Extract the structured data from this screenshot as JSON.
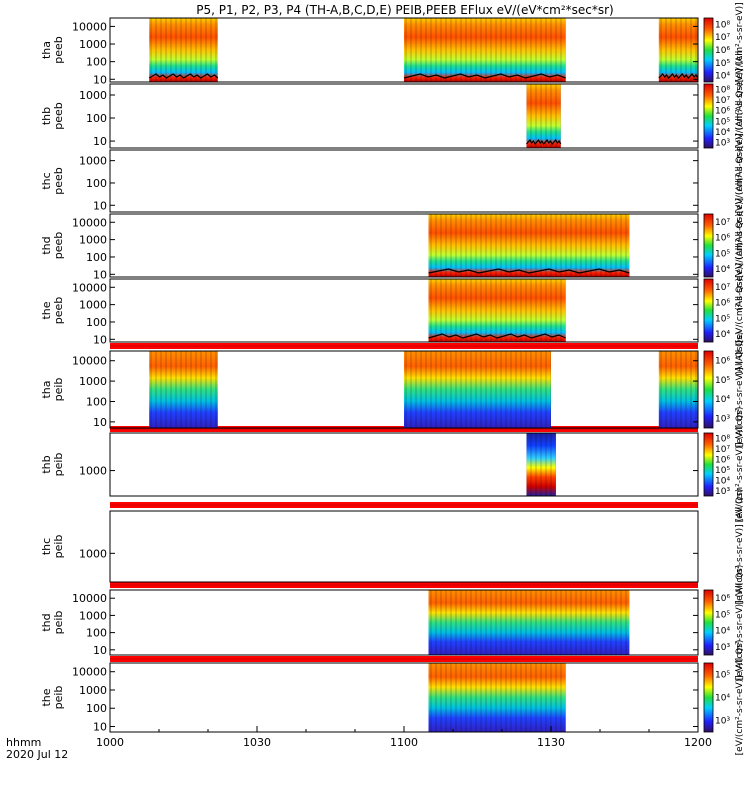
{
  "chart_data": {
    "type": "heatmap",
    "title": "P5, P1, P2, P3, P4 (TH-A,B,C,D,E) PEIB,PEEB EFlux eV/(eV*cm²*sec*sr)",
    "x_tick_labels": [
      "1000",
      "1030",
      "1100",
      "1130",
      "1200"
    ],
    "x_ticks_min": [
      0,
      30,
      60,
      90,
      120
    ],
    "x_range_min": [
      0,
      120
    ],
    "x_label_line1": "hhmm",
    "x_label_line2": "2020 Jul 12",
    "y_scale": "log",
    "colorscale": "rainbow",
    "colorbar_scale": "log",
    "panels": [
      {
        "probe": "tha",
        "inst": "peeb",
        "yticks": [
          "10",
          "100",
          "1000",
          "10000"
        ],
        "ylim": [
          7,
          30000
        ],
        "blocks": [
          {
            "start": 8,
            "end": 22,
            "style": "ee"
          },
          {
            "start": 60,
            "end": 93,
            "style": "ee"
          },
          {
            "start": 112,
            "end": 120,
            "style": "ee"
          }
        ],
        "cbar_ticks": [
          "10⁴",
          "10⁵",
          "10⁶",
          "10⁷",
          "10⁸"
        ],
        "cbar_label": "(All Qs)[eV/(cm²-s-sr-eV)] (All"
      },
      {
        "probe": "thb",
        "inst": "peeb",
        "yticks": [
          "10",
          "100",
          "1000"
        ],
        "ylim": [
          5,
          3000
        ],
        "blocks": [
          {
            "start": 85,
            "end": 92,
            "style": "ee"
          }
        ],
        "cbar_ticks": [
          "10³",
          "10⁴",
          "10⁵",
          "10⁶",
          "10⁷",
          "10⁸"
        ],
        "cbar_label": "(All Qs)[eV/(cm²-s-sr-eV)] (All"
      },
      {
        "probe": "thc",
        "inst": "peeb",
        "yticks": [
          "10",
          "100",
          "1000"
        ],
        "ylim": [
          5,
          3000
        ],
        "blocks": [],
        "cbar_ticks": [],
        "cbar_label": "(All Qs)[eV/(cm²-s-sr-eV)] (All"
      },
      {
        "probe": "thd",
        "inst": "peeb",
        "yticks": [
          "10",
          "100",
          "1000",
          "10000"
        ],
        "ylim": [
          7,
          30000
        ],
        "blocks": [
          {
            "start": 65,
            "end": 106,
            "style": "ee"
          }
        ],
        "cbar_ticks": [
          "10⁴",
          "10⁵",
          "10⁶",
          "10⁷"
        ],
        "cbar_label": "(All Qs)[eV/(cm²-s-sr-eV)] (All"
      },
      {
        "probe": "the",
        "inst": "peeb",
        "yticks": [
          "10",
          "100",
          "1000",
          "10000"
        ],
        "ylim": [
          7,
          30000
        ],
        "blocks": [
          {
            "start": 65,
            "end": 93,
            "style": "ee"
          }
        ],
        "cbar_ticks": [
          "10⁴",
          "10⁵",
          "10⁶",
          "10⁷"
        ],
        "cbar_label": "(All Qs)[eV/(cm²-s-sr-eV)] (All"
      },
      {
        "probe": "tha",
        "inst": "peib",
        "yticks": [
          "10",
          "100",
          "1000",
          "10000"
        ],
        "ylim": [
          5,
          30000
        ],
        "blocks": [
          {
            "start": 8,
            "end": 22,
            "style": "ei"
          },
          {
            "start": 60,
            "end": 90,
            "style": "ei"
          },
          {
            "start": 112,
            "end": 120,
            "style": "ei"
          }
        ],
        "cbar_ticks": [
          "10³",
          "10⁴",
          "10⁵",
          "10⁶"
        ],
        "cbar_label": "[eV/(cm²-s-sr-eV)] (All Qs)"
      },
      {
        "probe": "thb",
        "inst": "peib",
        "yticks": [
          "1000"
        ],
        "ylim": [
          100,
          30000
        ],
        "blocks": [
          {
            "start": 85,
            "end": 91,
            "style": "ib"
          }
        ],
        "cbar_ticks": [
          "10³",
          "10⁴",
          "10⁵",
          "10⁶",
          "10⁷",
          "10⁸"
        ],
        "cbar_label": "[eV/(cm²-s-sr-eV)] (All Qs)"
      },
      {
        "probe": "thc",
        "inst": "peib",
        "yticks": [
          "1000"
        ],
        "ylim": [
          100,
          30000
        ],
        "blocks": [],
        "cbar_ticks": [],
        "cbar_label": "[eV/(cm²-s-sr-eV)] (All Qs)"
      },
      {
        "probe": "thd",
        "inst": "peib",
        "yticks": [
          "10",
          "100",
          "1000",
          "10000"
        ],
        "ylim": [
          5,
          30000
        ],
        "blocks": [
          {
            "start": 65,
            "end": 106,
            "style": "ei"
          }
        ],
        "cbar_ticks": [
          "10³",
          "10⁴",
          "10⁵",
          "10⁶"
        ],
        "cbar_label": "[eV/(cm²-s-sr-eV)] (All Qs)"
      },
      {
        "probe": "the",
        "inst": "peib",
        "yticks": [
          "10",
          "100",
          "1000",
          "10000"
        ],
        "ylim": [
          5,
          30000
        ],
        "blocks": [
          {
            "start": 65,
            "end": 93,
            "style": "ei"
          }
        ],
        "cbar_ticks": [
          "10³",
          "10⁴",
          "10⁵"
        ],
        "cbar_label": "[eV/(cm²-s-sr-eV)] (All Qs)"
      }
    ]
  }
}
